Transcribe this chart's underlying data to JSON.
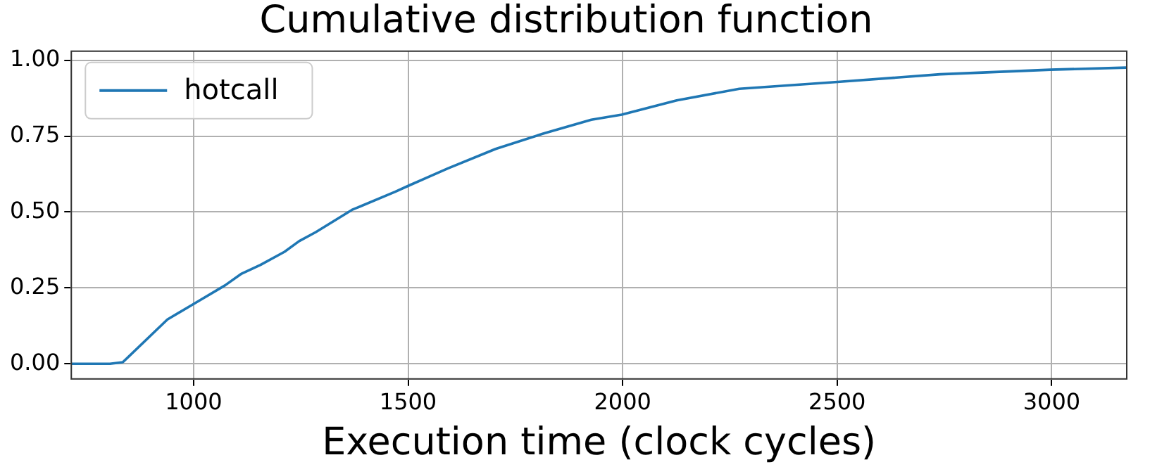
{
  "chart_data": {
    "type": "line",
    "title": "Cumulative distribution function",
    "xlabel": "Execution time (clock cycles)",
    "xlim": [
      715,
      3175
    ],
    "xticks": [
      1000,
      1500,
      2000,
      2500,
      3000
    ],
    "ylim": [
      -0.05,
      1.03
    ],
    "yticks": [
      {
        "value": 0,
        "label": "0.00"
      },
      {
        "value": 0.25,
        "label": "0.25"
      },
      {
        "value": 0.5,
        "label": "0.50"
      },
      {
        "value": 0.75,
        "label": "0.75"
      },
      {
        "value": 1,
        "label": "1.00"
      }
    ],
    "grid": true,
    "legend": "top left",
    "marker": "none",
    "line_style": "solid",
    "series": [
      {
        "name": "hotcall",
        "color": "#1f77b4",
        "x": [
          715,
          805,
          835,
          939,
          1000,
          1073,
          1112,
          1156,
          1212,
          1246,
          1285,
          1369,
          1470,
          1503,
          1593,
          1704,
          1816,
          1927,
          1998,
          2126,
          2272,
          2495,
          2740,
          2997,
          3174
        ],
        "values": [
          0,
          0,
          0.005,
          0.146,
          0.197,
          0.258,
          0.297,
          0.326,
          0.369,
          0.404,
          0.434,
          0.507,
          0.567,
          0.588,
          0.644,
          0.708,
          0.759,
          0.804,
          0.821,
          0.868,
          0.906,
          0.928,
          0.954,
          0.969,
          0.976
        ]
      }
    ]
  }
}
